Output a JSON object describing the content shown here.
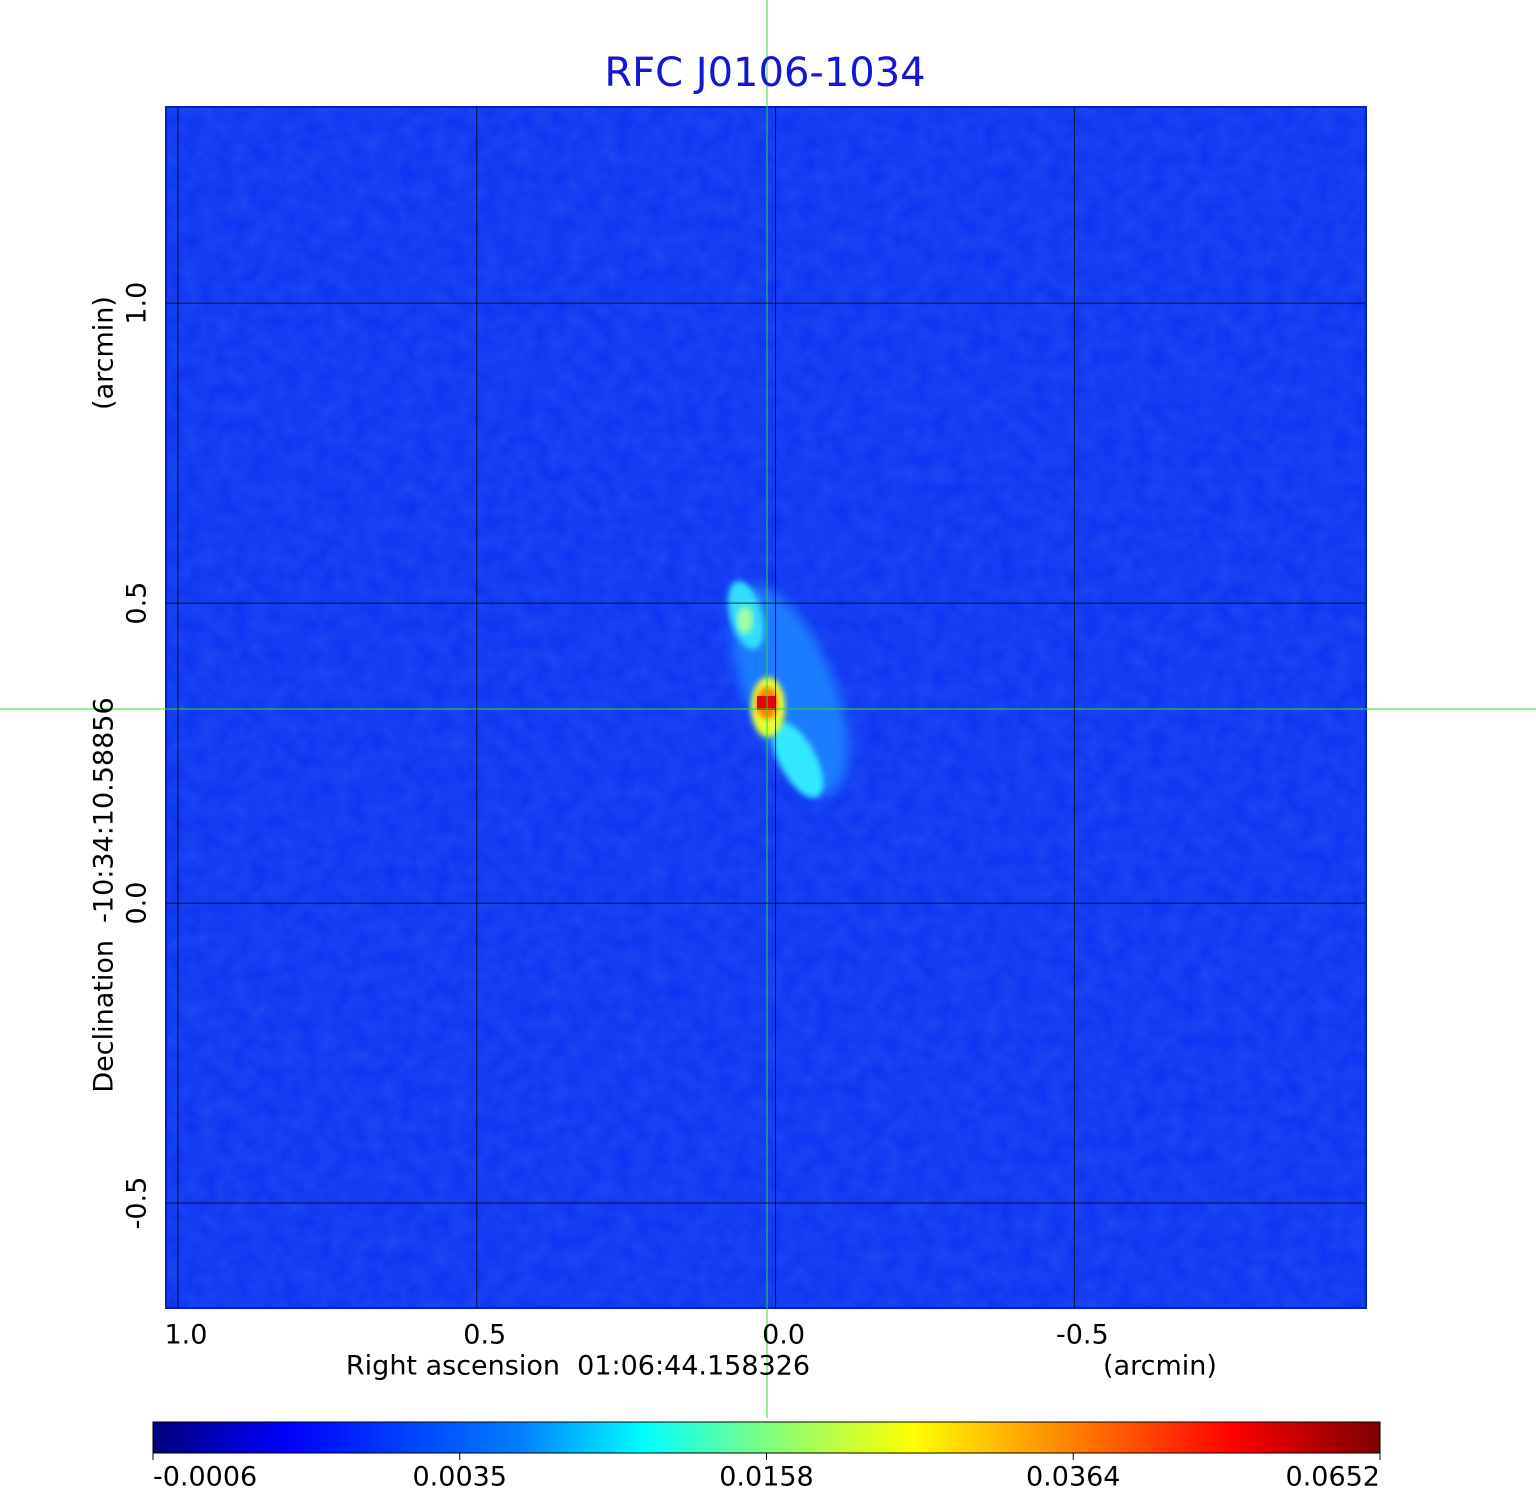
{
  "chart_data": {
    "type": "image",
    "title": "RFC J0106-1034",
    "x_label": "Right ascension  01:06:44.158326",
    "x_unit": "(arcmin)",
    "y_label": "Declination  -10:34:10.58856",
    "y_unit": "(arcmin)",
    "xlim": [
      1.02,
      -0.988
    ],
    "xticks": [
      {
        "value": 1,
        "label": "1.0"
      },
      0.5,
      {
        "value": 0,
        "label": "0.0"
      },
      -0.5
    ],
    "ylim": [
      -0.675,
      1.327
    ],
    "yticks": [
      -0.5,
      {
        "value": 0,
        "label": "0.0"
      },
      0.5,
      {
        "value": 1,
        "label": "1.0"
      }
    ],
    "grid": true,
    "colormap": "jet",
    "colorbar_ticks": [
      -0.0006,
      0.0035,
      0.0158,
      0.0364,
      0.0652
    ]
  }
}
